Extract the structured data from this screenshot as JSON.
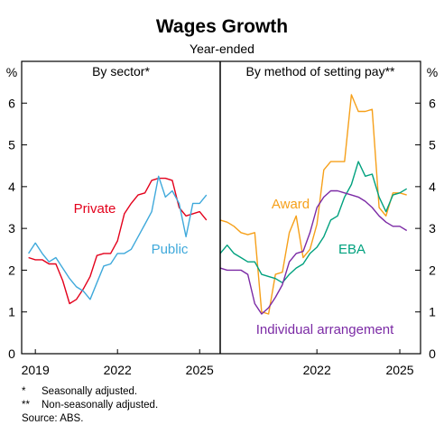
{
  "title": "Wages Growth",
  "subtitle": "Year-ended",
  "footnotes": [
    {
      "marker": "*",
      "text": "Seasonally adjusted."
    },
    {
      "marker": "**",
      "text": "Non-seasonally adjusted."
    }
  ],
  "source": "Source: ABS.",
  "chart_data": [
    {
      "type": "line",
      "title": "By sector*",
      "yunit": "%",
      "ylim": [
        0,
        7
      ],
      "yticks": [
        0,
        1,
        2,
        3,
        4,
        5,
        6
      ],
      "xlim": [
        2018.5,
        2025.75
      ],
      "xticks": [
        2019,
        2022,
        2025
      ],
      "xtick_labels": [
        "2019",
        "2022",
        "2025"
      ],
      "grid": false,
      "series": [
        {
          "name": "Private",
          "color": "#e3001b",
          "x": [
            2018.75,
            2019.0,
            2019.25,
            2019.5,
            2019.75,
            2020.0,
            2020.25,
            2020.5,
            2020.75,
            2021.0,
            2021.25,
            2021.5,
            2021.75,
            2022.0,
            2022.25,
            2022.5,
            2022.75,
            2023.0,
            2023.25,
            2023.5,
            2023.75,
            2024.0,
            2024.25,
            2024.5,
            2024.75,
            2025.0,
            2025.25
          ],
          "values": [
            2.3,
            2.25,
            2.25,
            2.15,
            2.15,
            1.75,
            1.2,
            1.3,
            1.55,
            1.85,
            2.35,
            2.4,
            2.4,
            2.7,
            3.35,
            3.6,
            3.8,
            3.85,
            4.15,
            4.2,
            4.2,
            4.15,
            3.5,
            3.3,
            3.35,
            3.4,
            3.2
          ]
        },
        {
          "name": "Public",
          "color": "#3fa9db",
          "x": [
            2018.75,
            2019.0,
            2019.25,
            2019.5,
            2019.75,
            2020.0,
            2020.25,
            2020.5,
            2020.75,
            2021.0,
            2021.25,
            2021.5,
            2021.75,
            2022.0,
            2022.25,
            2022.5,
            2022.75,
            2023.0,
            2023.25,
            2023.5,
            2023.75,
            2024.0,
            2024.25,
            2024.5,
            2024.75,
            2025.0,
            2025.25
          ],
          "values": [
            2.4,
            2.65,
            2.4,
            2.2,
            2.3,
            2.05,
            1.8,
            1.6,
            1.5,
            1.3,
            1.7,
            2.1,
            2.15,
            2.4,
            2.4,
            2.5,
            2.8,
            3.1,
            3.4,
            4.25,
            3.75,
            3.9,
            3.6,
            2.8,
            3.6,
            3.6,
            3.8
          ]
        }
      ]
    },
    {
      "type": "line",
      "title": "By method of setting pay**",
      "yunit": "%",
      "ylim": [
        0,
        7
      ],
      "yticks": [
        0,
        1,
        2,
        3,
        4,
        5,
        6
      ],
      "xlim": [
        2018.5,
        2025.75
      ],
      "xticks": [
        2022,
        2025
      ],
      "xtick_labels": [
        "2022",
        "2025"
      ],
      "grid": false,
      "series": [
        {
          "name": "Award",
          "color": "#f6a01a",
          "x": [
            2018.5,
            2018.75,
            2019.0,
            2019.25,
            2019.5,
            2019.75,
            2020.0,
            2020.25,
            2020.5,
            2020.75,
            2021.0,
            2021.25,
            2021.5,
            2021.75,
            2022.0,
            2022.25,
            2022.5,
            2022.75,
            2023.0,
            2023.25,
            2023.5,
            2023.75,
            2024.0,
            2024.25,
            2024.5,
            2024.75,
            2025.0,
            2025.25
          ],
          "values": [
            3.2,
            3.15,
            3.05,
            2.9,
            2.85,
            2.9,
            1.0,
            0.95,
            1.9,
            1.95,
            2.9,
            3.3,
            2.3,
            2.5,
            3.1,
            4.4,
            4.6,
            4.6,
            4.6,
            6.2,
            5.8,
            5.8,
            5.85,
            3.5,
            3.3,
            3.85,
            3.85,
            3.8
          ]
        },
        {
          "name": "EBA",
          "color": "#00a17e",
          "x": [
            2018.5,
            2018.75,
            2019.0,
            2019.25,
            2019.5,
            2019.75,
            2020.0,
            2020.25,
            2020.5,
            2020.75,
            2021.0,
            2021.25,
            2021.5,
            2021.75,
            2022.0,
            2022.25,
            2022.5,
            2022.75,
            2023.0,
            2023.25,
            2023.5,
            2023.75,
            2024.0,
            2024.25,
            2024.5,
            2024.75,
            2025.0,
            2025.25
          ],
          "values": [
            2.4,
            2.6,
            2.4,
            2.3,
            2.2,
            2.2,
            1.9,
            1.85,
            1.8,
            1.7,
            1.9,
            2.05,
            2.15,
            2.4,
            2.55,
            2.8,
            3.2,
            3.3,
            3.75,
            4.05,
            4.6,
            4.25,
            4.3,
            3.75,
            3.4,
            3.8,
            3.85,
            3.95
          ]
        },
        {
          "name": "Individual arrangement",
          "color": "#7b2aa5",
          "x": [
            2018.5,
            2018.75,
            2019.0,
            2019.25,
            2019.5,
            2019.75,
            2020.0,
            2020.25,
            2020.5,
            2020.75,
            2021.0,
            2021.25,
            2021.5,
            2021.75,
            2022.0,
            2022.25,
            2022.5,
            2022.75,
            2023.0,
            2023.25,
            2023.5,
            2023.75,
            2024.0,
            2024.25,
            2024.5,
            2024.75,
            2025.0,
            2025.25
          ],
          "values": [
            2.05,
            2.0,
            2.0,
            2.0,
            1.9,
            1.2,
            0.95,
            1.1,
            1.35,
            1.65,
            2.2,
            2.4,
            2.45,
            2.9,
            3.5,
            3.75,
            3.9,
            3.9,
            3.85,
            3.8,
            3.75,
            3.65,
            3.5,
            3.3,
            3.15,
            3.05,
            3.05,
            2.95
          ]
        }
      ]
    }
  ]
}
